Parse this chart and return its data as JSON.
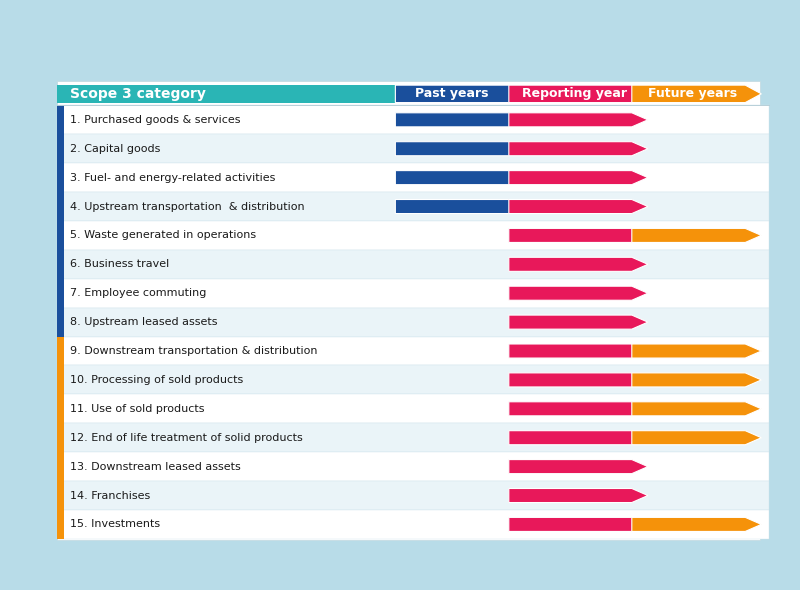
{
  "background_outer": "#b8dce8",
  "background_inner": "#deeef5",
  "top_bar_color": "#00b8d4",
  "bottom_bar_color": "#555555",
  "header_teal": "#2ab5b5",
  "header_blue": "#1a4f9c",
  "header_pink": "#e8185a",
  "header_orange": "#f5920a",
  "arrow_blue": "#1a4f9c",
  "arrow_pink": "#e8185a",
  "arrow_orange": "#f5920a",
  "white": "#ffffff",
  "row_bg_white": "#ffffff",
  "row_bg_light": "#eaf4f8",
  "border_blue": "#2196f3",
  "border_orange": "#f5920a",
  "separator_color": "#b8cfd8",
  "header_labels": [
    "Scope 3 category",
    "Past years",
    "Reporting year",
    "Future years"
  ],
  "categories": [
    "1. Purchased goods & services",
    "2. Capital goods",
    "3. Fuel- and energy-related activities",
    "4. Upstream transportation  & distribution",
    "5. Waste generated in operations",
    "6. Business travel",
    "7. Employee commuting",
    "8. Upstream leased assets",
    "9. Downstream transportation & distribution",
    "10. Processing of sold products",
    "11. Use of sold products",
    "12. End of life treatment of solid products",
    "13. Downstream leased assets",
    "14. Franchises",
    "15. Investments"
  ],
  "rows": [
    {
      "past": true,
      "reporting": true,
      "future": false
    },
    {
      "past": true,
      "reporting": true,
      "future": false
    },
    {
      "past": true,
      "reporting": true,
      "future": false
    },
    {
      "past": true,
      "reporting": true,
      "future": false
    },
    {
      "past": false,
      "reporting": true,
      "future": true
    },
    {
      "past": false,
      "reporting": true,
      "future": false
    },
    {
      "past": false,
      "reporting": true,
      "future": false
    },
    {
      "past": false,
      "reporting": true,
      "future": false
    },
    {
      "past": false,
      "reporting": true,
      "future": true
    },
    {
      "past": false,
      "reporting": true,
      "future": true
    },
    {
      "past": false,
      "reporting": true,
      "future": true
    },
    {
      "past": false,
      "reporting": true,
      "future": true
    },
    {
      "past": false,
      "reporting": true,
      "future": false
    },
    {
      "past": false,
      "reporting": true,
      "future": false
    },
    {
      "past": false,
      "reporting": true,
      "future": true
    }
  ],
  "left_border": [
    "blue",
    "blue",
    "blue",
    "blue",
    "blue",
    "blue",
    "blue",
    "blue",
    "orange",
    "orange",
    "orange",
    "orange",
    "orange",
    "orange",
    "orange"
  ]
}
